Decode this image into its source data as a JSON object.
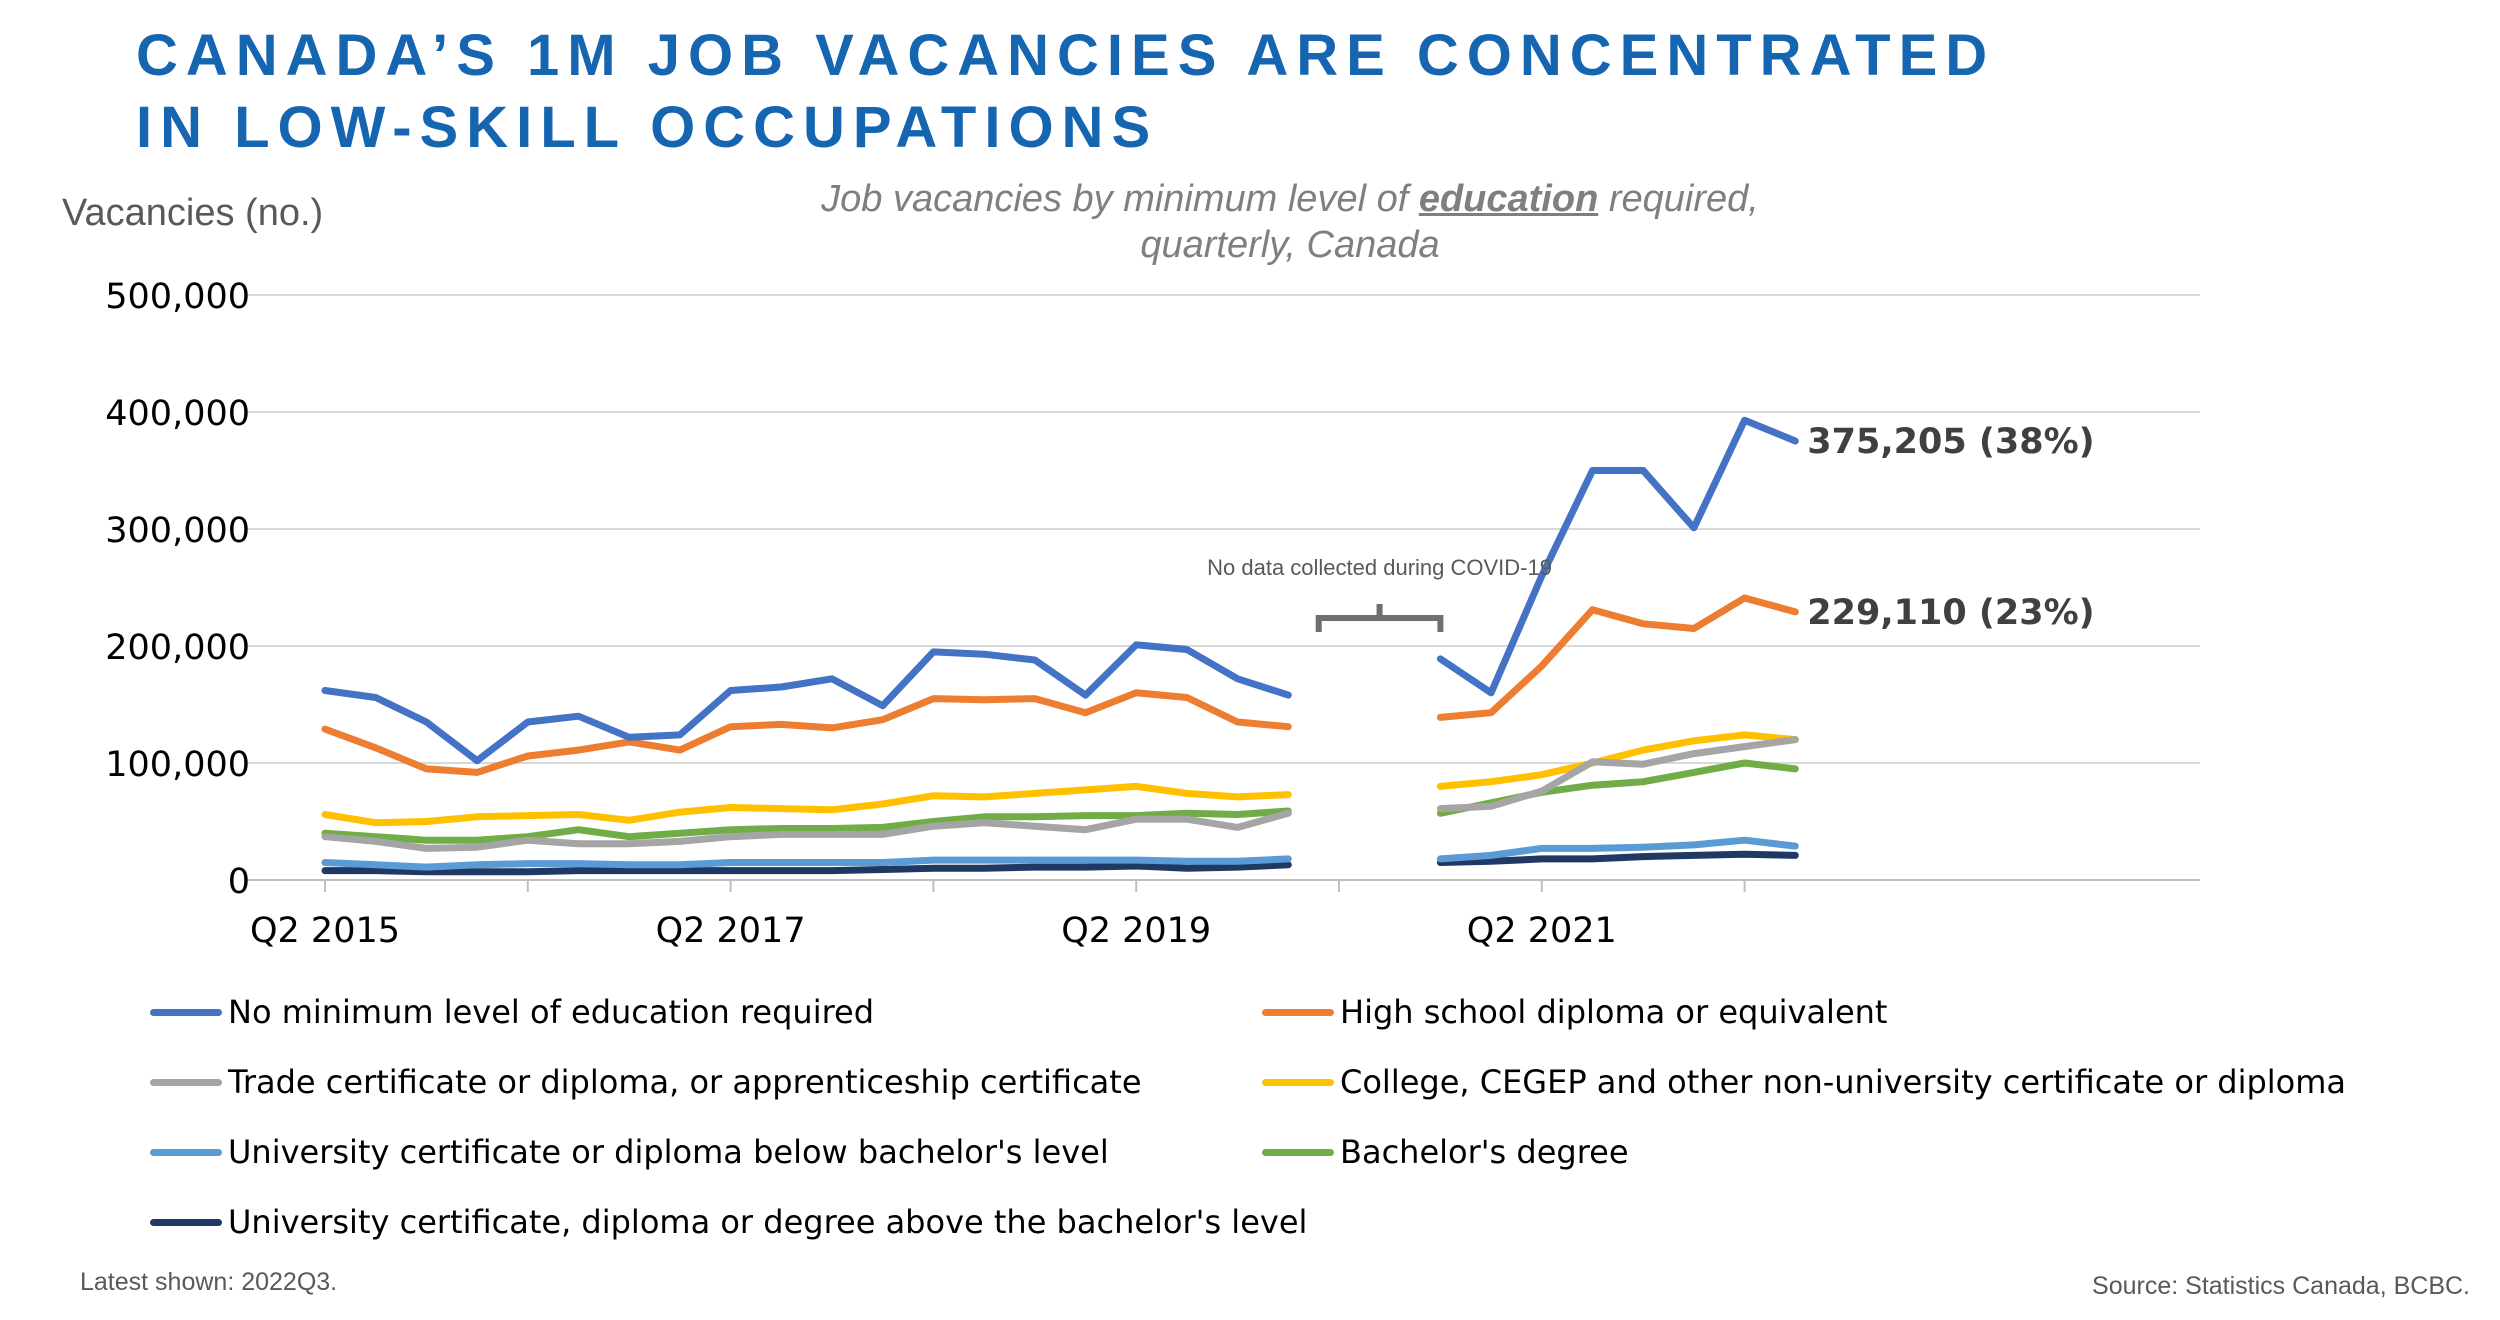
{
  "headline": {
    "line1": "CANADA’S 1M JOB VACANCIES ARE CONCENTRATED",
    "line2": "IN LOW-SKILL OCCUPATIONS"
  },
  "chart_data": {
    "type": "line",
    "ylabel": "Vacancies (no.)",
    "subtitle_pre": "Job vacancies by minimum level of ",
    "subtitle_emph": "education",
    "subtitle_post": " required,",
    "subtitle_line2": "quarterly, Canada",
    "ylim": [
      0,
      500000
    ],
    "yticks": [
      0,
      100000,
      200000,
      300000,
      400000,
      500000
    ],
    "ytick_labels": [
      "0",
      "100,000",
      "200,000",
      "300,000",
      "400,000",
      "500,000"
    ],
    "x": [
      "2015Q2",
      "2015Q3",
      "2015Q4",
      "2016Q1",
      "2016Q2",
      "2016Q3",
      "2016Q4",
      "2017Q1",
      "2017Q2",
      "2017Q3",
      "2017Q4",
      "2018Q1",
      "2018Q2",
      "2018Q3",
      "2018Q4",
      "2019Q1",
      "2019Q2",
      "2019Q3",
      "2019Q4",
      "2020Q1",
      "2020Q2",
      "2020Q3",
      "2020Q4",
      "2021Q1",
      "2021Q2",
      "2021Q3",
      "2021Q4",
      "2022Q1",
      "2022Q2",
      "2022Q3"
    ],
    "xtick_labels": [
      {
        "label": "Q2 2015",
        "index": 0
      },
      {
        "label": "Q2 2017",
        "index": 8
      },
      {
        "label": "Q2 2019",
        "index": 16
      },
      {
        "label": "Q2 2021",
        "index": 24
      }
    ],
    "gap_note": "No data collected during COVID-19",
    "series": [
      {
        "name": "No minimum level of education required",
        "color": "#4472c4",
        "values": [
          162000,
          156000,
          135000,
          102000,
          135000,
          140000,
          122000,
          124000,
          162000,
          165000,
          172000,
          149000,
          195000,
          193000,
          188000,
          158000,
          201000,
          197000,
          172000,
          158000,
          null,
          null,
          189000,
          160000,
          260000,
          350000,
          350000,
          301000,
          393000,
          375205
        ]
      },
      {
        "name": "High school diploma or equivalent",
        "color": "#ed7d31",
        "values": [
          129000,
          113000,
          95000,
          92000,
          106000,
          111000,
          118000,
          111000,
          131000,
          133000,
          130000,
          137000,
          155000,
          154000,
          155000,
          143000,
          160000,
          156000,
          135000,
          131000,
          null,
          null,
          139000,
          143000,
          183000,
          231000,
          219000,
          215000,
          241000,
          229110
        ]
      },
      {
        "name": "Trade certificate or diploma, or apprenticeship certificate",
        "color": "#a5a5a5",
        "values": [
          37000,
          33000,
          27000,
          28000,
          34000,
          31000,
          31000,
          33000,
          37000,
          39000,
          39000,
          39000,
          46000,
          49000,
          46000,
          43000,
          52000,
          52000,
          45000,
          57000,
          null,
          null,
          61000,
          63000,
          76000,
          101000,
          99000,
          108000,
          114000,
          120000
        ]
      },
      {
        "name": "College, CEGEP and other non-university certificate or diploma",
        "color": "#ffc000",
        "values": [
          56000,
          49000,
          50000,
          54000,
          55000,
          56000,
          51000,
          58000,
          62000,
          61000,
          60000,
          65000,
          72000,
          71000,
          74000,
          77000,
          80000,
          74000,
          71000,
          73000,
          null,
          null,
          80000,
          84000,
          90000,
          100000,
          111000,
          119000,
          124000,
          120000
        ]
      },
      {
        "name": "University certificate or diploma below bachelor's level",
        "color": "#5b9bd5",
        "values": [
          15000,
          13000,
          11000,
          13000,
          14000,
          14000,
          13000,
          13000,
          15000,
          15000,
          15000,
          15000,
          17000,
          17000,
          17000,
          17000,
          17000,
          16000,
          16000,
          18000,
          null,
          null,
          18000,
          21000,
          27000,
          27000,
          28000,
          30000,
          34000,
          29000
        ]
      },
      {
        "name": "Bachelor's degree",
        "color": "#70ad47",
        "values": [
          40000,
          37000,
          34000,
          34000,
          37000,
          43000,
          37000,
          40000,
          43000,
          44000,
          44000,
          45000,
          50000,
          54000,
          54000,
          55000,
          55000,
          57000,
          56000,
          59000,
          null,
          null,
          57000,
          66000,
          75000,
          81000,
          84000,
          92000,
          100000,
          95000
        ]
      },
      {
        "name": "University certificate, diploma or degree above the bachelor's level",
        "color": "#203864",
        "values": [
          8000,
          8000,
          7000,
          7000,
          7000,
          8000,
          8000,
          8000,
          8000,
          8000,
          8000,
          9000,
          10000,
          10000,
          11000,
          11000,
          12000,
          10000,
          11000,
          13000,
          null,
          null,
          15000,
          16000,
          18000,
          18000,
          20000,
          21000,
          22000,
          21000
        ]
      }
    ],
    "end_labels": [
      {
        "text": "375,205 (38%)",
        "series": 0
      },
      {
        "text": "229,110 (23%)",
        "series": 1
      }
    ],
    "legend_placement": "bottom, two columns",
    "grid": "horizontal"
  },
  "footer": {
    "latest": "Latest shown: 2022Q3.",
    "source": "Source: Statistics Canada, BCBC."
  }
}
